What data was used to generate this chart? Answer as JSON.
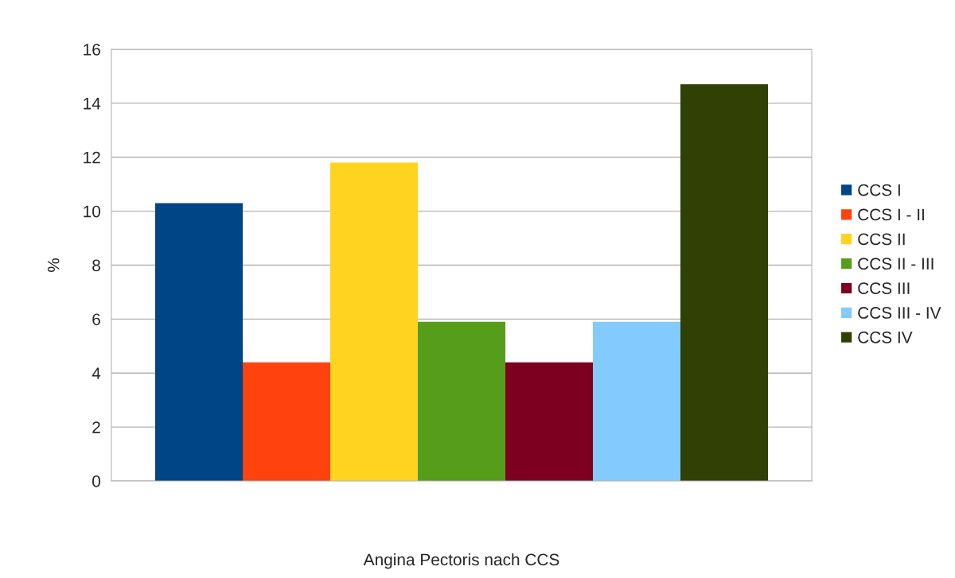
{
  "chart_data": {
    "type": "bar",
    "xlabel": "Angina Pectoris nach CCS",
    "ylabel": "%",
    "categories": [
      null
    ],
    "series": [
      {
        "name": "CCS I",
        "color": "#004586",
        "values": [
          10.3
        ]
      },
      {
        "name": "CCS I - II",
        "color": "#ff420e",
        "values": [
          4.4
        ]
      },
      {
        "name": "CCS II",
        "color": "#ffd320",
        "values": [
          11.8
        ]
      },
      {
        "name": "CCS II - III",
        "color": "#579d1c",
        "values": [
          5.9
        ]
      },
      {
        "name": "CCS III",
        "color": "#7e0021",
        "values": [
          4.4
        ]
      },
      {
        "name": "CCS III - IV",
        "color": "#83caff",
        "values": [
          5.9
        ]
      },
      {
        "name": "CCS IV",
        "color": "#314004",
        "values": [
          14.7
        ]
      }
    ],
    "ylim": [
      0,
      16
    ],
    "yticks": [
      0,
      2,
      4,
      6,
      8,
      10,
      12,
      14,
      16
    ],
    "grid": "y",
    "legend": "right"
  }
}
